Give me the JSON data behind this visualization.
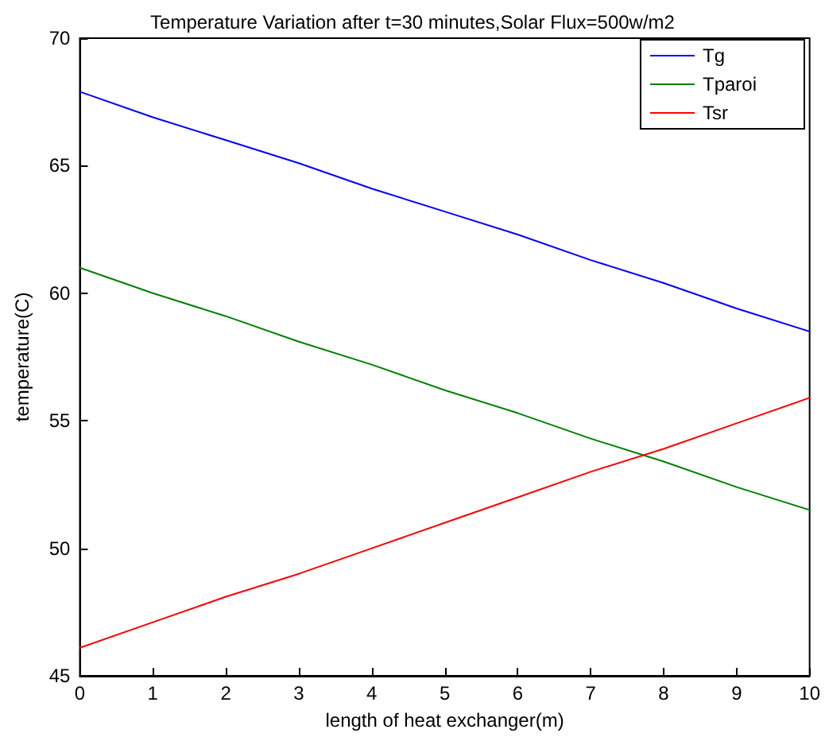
{
  "chart_data": {
    "type": "line",
    "title": "Temperature Variation after t=30 minutes,Solar Flux=500w/m2",
    "xlabel": "length of heat exchanger(m)",
    "ylabel": "temperature(C)",
    "x": [
      0,
      1,
      2,
      3,
      4,
      5,
      6,
      7,
      8,
      9,
      10
    ],
    "series": [
      {
        "name": "Tg",
        "color": "#0000ff",
        "values": [
          67.9,
          66.9,
          66.0,
          65.1,
          64.1,
          63.2,
          62.3,
          61.3,
          60.4,
          59.4,
          58.5
        ]
      },
      {
        "name": "Tparoi",
        "color": "#008000",
        "values": [
          61.0,
          60.0,
          59.1,
          58.1,
          57.2,
          56.2,
          55.3,
          54.3,
          53.4,
          52.4,
          51.5
        ]
      },
      {
        "name": "Tsr",
        "color": "#ff0000",
        "values": [
          46.1,
          47.1,
          48.1,
          49.0,
          50.0,
          51.0,
          52.0,
          53.0,
          53.9,
          54.9,
          55.9
        ]
      }
    ],
    "xlim": [
      0,
      10
    ],
    "xticks": [
      0,
      1,
      2,
      3,
      4,
      5,
      6,
      7,
      8,
      9,
      10
    ],
    "ylim": [
      45,
      70
    ],
    "yticks": [
      45,
      50,
      55,
      60,
      65,
      70
    ],
    "legend": "top right",
    "marker": "none",
    "line_style": "solid"
  }
}
